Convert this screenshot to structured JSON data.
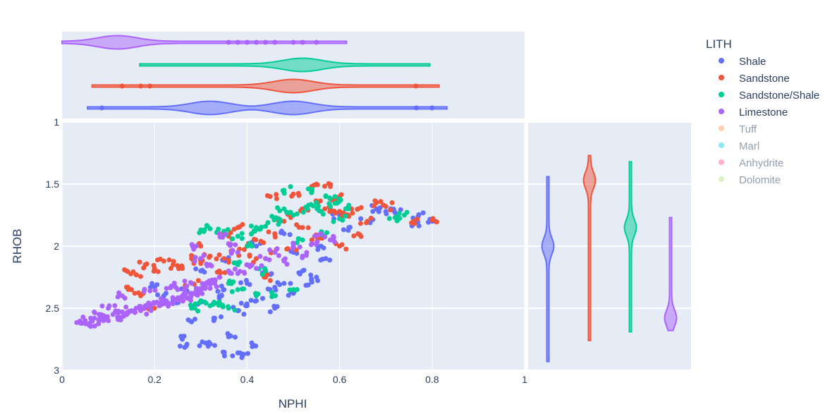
{
  "chart_data": {
    "type": "scatter",
    "xlabel": "NPHI",
    "ylabel": "RHOB",
    "xlim": [
      0,
      1
    ],
    "ylim": [
      3,
      1
    ],
    "y_reversed": true,
    "x_ticks": [
      "0",
      "0.2",
      "0.4",
      "0.6",
      "0.8",
      "1"
    ],
    "y_ticks": [
      "1",
      "1.5",
      "2",
      "2.5",
      "3"
    ],
    "x_tick_values": [
      0,
      0.2,
      0.4,
      0.6,
      0.8,
      1
    ],
    "y_tick_values": [
      1,
      1.5,
      2,
      2.5,
      3
    ],
    "grid": true,
    "marginal_x": "violin",
    "marginal_y": "violin",
    "legend": {
      "title": "LITH",
      "placement": "right",
      "items": [
        {
          "name": "Shale",
          "color": "#636efa",
          "visible": true
        },
        {
          "name": "Sandstone",
          "color": "#ef553b",
          "visible": true
        },
        {
          "name": "Sandstone/Shale",
          "color": "#00cc96",
          "visible": true
        },
        {
          "name": "Limestone",
          "color": "#ab63fa",
          "visible": true
        },
        {
          "name": "Tuff",
          "color": "#ffa15a",
          "visible": false
        },
        {
          "name": "Marl",
          "color": "#19d3f3",
          "visible": false
        },
        {
          "name": "Anhydrite",
          "color": "#ff6692",
          "visible": false
        },
        {
          "name": "Dolomite",
          "color": "#b6e880",
          "visible": false
        }
      ]
    },
    "series": [
      {
        "name": "Shale",
        "color": "#636efa",
        "points": [
          [
            0.27,
            2.36
          ],
          [
            0.3,
            2.45
          ],
          [
            0.34,
            2.42
          ],
          [
            0.38,
            2.52
          ],
          [
            0.42,
            2.44
          ],
          [
            0.46,
            2.5
          ],
          [
            0.5,
            2.38
          ],
          [
            0.54,
            2.29
          ],
          [
            0.3,
            2.2
          ],
          [
            0.4,
            2.3
          ],
          [
            0.33,
            2.58
          ],
          [
            0.28,
            2.61
          ],
          [
            0.44,
            2.2
          ],
          [
            0.5,
            2.05
          ],
          [
            0.56,
            2.0
          ],
          [
            0.6,
            1.75
          ],
          [
            0.62,
            1.85
          ],
          [
            0.66,
            1.8
          ],
          [
            0.68,
            1.7
          ],
          [
            0.7,
            1.72
          ],
          [
            0.36,
            2.12
          ],
          [
            0.42,
            2.0
          ],
          [
            0.26,
            2.75
          ],
          [
            0.27,
            2.79
          ],
          [
            0.31,
            2.78
          ],
          [
            0.33,
            2.8
          ],
          [
            0.35,
            2.86
          ],
          [
            0.38,
            2.86
          ],
          [
            0.39,
            2.87
          ],
          [
            0.41,
            2.78
          ],
          [
            0.36,
            2.73
          ],
          [
            0.24,
            2.44
          ],
          [
            0.22,
            2.4
          ],
          [
            0.2,
            2.33
          ],
          [
            0.48,
            2.3
          ],
          [
            0.52,
            2.2
          ],
          [
            0.45,
            2.35
          ],
          [
            0.4,
            2.48
          ],
          [
            0.35,
            2.35
          ],
          [
            0.72,
            1.73
          ],
          [
            0.77,
            1.76
          ],
          [
            0.8,
            1.8
          ],
          [
            0.76,
            1.81
          ],
          [
            0.55,
            2.25
          ],
          [
            0.48,
            1.9
          ],
          [
            0.57,
            2.1
          ]
        ],
        "x_violin": {
          "min": 0.055,
          "max": 0.832,
          "markers": [
            0.086,
            0.766,
            0.8
          ],
          "peaks": [
            0.32,
            0.5
          ]
        },
        "y_violin": {
          "min": 1.44,
          "max": 2.93,
          "peak": 2.0
        }
      },
      {
        "name": "Sandstone",
        "color": "#ef553b",
        "points": [
          [
            0.14,
            2.2
          ],
          [
            0.16,
            2.23
          ],
          [
            0.18,
            2.15
          ],
          [
            0.2,
            2.18
          ],
          [
            0.22,
            2.12
          ],
          [
            0.24,
            2.15
          ],
          [
            0.26,
            2.18
          ],
          [
            0.28,
            2.1
          ],
          [
            0.3,
            2.14
          ],
          [
            0.32,
            2.08
          ],
          [
            0.35,
            2.1
          ],
          [
            0.38,
            2.05
          ],
          [
            0.4,
            2.0
          ],
          [
            0.43,
            1.96
          ],
          [
            0.46,
            1.9
          ],
          [
            0.48,
            1.8
          ],
          [
            0.5,
            1.75
          ],
          [
            0.52,
            1.7
          ],
          [
            0.55,
            1.65
          ],
          [
            0.58,
            1.7
          ],
          [
            0.6,
            1.72
          ],
          [
            0.62,
            1.76
          ],
          [
            0.64,
            1.7
          ],
          [
            0.66,
            1.8
          ],
          [
            0.45,
            1.6
          ],
          [
            0.5,
            1.58
          ],
          [
            0.55,
            1.5
          ],
          [
            0.58,
            1.52
          ],
          [
            0.6,
            1.6
          ],
          [
            0.38,
            1.85
          ],
          [
            0.36,
            1.92
          ],
          [
            0.42,
            2.1
          ],
          [
            0.46,
            2.05
          ],
          [
            0.5,
            2.02
          ],
          [
            0.54,
            1.95
          ],
          [
            0.56,
            1.92
          ],
          [
            0.6,
            2.0
          ],
          [
            0.68,
            1.65
          ],
          [
            0.7,
            1.68
          ],
          [
            0.76,
            1.8
          ],
          [
            0.8,
            1.79
          ],
          [
            0.28,
            2.3
          ],
          [
            0.3,
            2.0
          ],
          [
            0.15,
            2.35
          ],
          [
            0.17,
            2.4
          ],
          [
            0.2,
            2.5
          ],
          [
            0.44,
            2.25
          ],
          [
            0.52,
            1.85
          ],
          [
            0.64,
            1.9
          ],
          [
            0.34,
            2.2
          ]
        ],
        "x_violin": {
          "min": 0.065,
          "max": 0.815,
          "markers": [
            0.13,
            0.17,
            0.19,
            0.765
          ],
          "peak": 0.5
        },
        "y_violin": {
          "min": 1.27,
          "max": 2.76,
          "peak": 1.47
        }
      },
      {
        "name": "Sandstone/Shale",
        "color": "#00cc96",
        "points": [
          [
            0.3,
            1.87
          ],
          [
            0.32,
            1.86
          ],
          [
            0.35,
            1.88
          ],
          [
            0.38,
            1.92
          ],
          [
            0.41,
            1.9
          ],
          [
            0.44,
            1.84
          ],
          [
            0.47,
            1.8
          ],
          [
            0.5,
            1.75
          ],
          [
            0.53,
            1.7
          ],
          [
            0.56,
            1.72
          ],
          [
            0.58,
            1.68
          ],
          [
            0.6,
            1.62
          ],
          [
            0.57,
            1.6
          ],
          [
            0.55,
            1.65
          ],
          [
            0.48,
            1.7
          ],
          [
            0.46,
            1.78
          ],
          [
            0.42,
            1.85
          ],
          [
            0.4,
            2.0
          ],
          [
            0.36,
            2.3
          ],
          [
            0.38,
            2.35
          ],
          [
            0.42,
            2.4
          ],
          [
            0.34,
            2.45
          ],
          [
            0.32,
            2.48
          ],
          [
            0.36,
            2.5
          ],
          [
            0.46,
            2.4
          ],
          [
            0.5,
            2.35
          ],
          [
            0.38,
            2.15
          ],
          [
            0.44,
            2.2
          ],
          [
            0.62,
            1.67
          ],
          [
            0.6,
            1.78
          ],
          [
            0.56,
            1.9
          ],
          [
            0.52,
            1.95
          ],
          [
            0.48,
            1.55
          ],
          [
            0.54,
            1.56
          ],
          [
            0.72,
            1.77
          ],
          [
            0.74,
            1.75
          ],
          [
            0.28,
            2.5
          ],
          [
            0.3,
            2.44
          ]
        ],
        "x_violin": {
          "min": 0.168,
          "max": 0.795,
          "peak": 0.52
        },
        "y_violin": {
          "min": 1.32,
          "max": 2.69,
          "peak": 1.85
        }
      },
      {
        "name": "Limestone",
        "color": "#ab63fa",
        "points": [
          [
            0.04,
            2.62
          ],
          [
            0.05,
            2.6
          ],
          [
            0.06,
            2.62
          ],
          [
            0.07,
            2.58
          ],
          [
            0.08,
            2.6
          ],
          [
            0.09,
            2.56
          ],
          [
            0.1,
            2.6
          ],
          [
            0.11,
            2.55
          ],
          [
            0.12,
            2.57
          ],
          [
            0.13,
            2.53
          ],
          [
            0.14,
            2.55
          ],
          [
            0.15,
            2.52
          ],
          [
            0.16,
            2.5
          ],
          [
            0.17,
            2.52
          ],
          [
            0.18,
            2.48
          ],
          [
            0.19,
            2.5
          ],
          [
            0.2,
            2.46
          ],
          [
            0.21,
            2.48
          ],
          [
            0.22,
            2.44
          ],
          [
            0.23,
            2.46
          ],
          [
            0.24,
            2.42
          ],
          [
            0.25,
            2.43
          ],
          [
            0.26,
            2.4
          ],
          [
            0.27,
            2.42
          ],
          [
            0.28,
            2.38
          ],
          [
            0.29,
            2.36
          ],
          [
            0.3,
            2.37
          ],
          [
            0.31,
            2.32
          ],
          [
            0.32,
            2.34
          ],
          [
            0.33,
            2.3
          ],
          [
            0.34,
            2.25
          ],
          [
            0.36,
            2.2
          ],
          [
            0.38,
            2.22
          ],
          [
            0.4,
            2.15
          ],
          [
            0.42,
            2.18
          ],
          [
            0.44,
            2.1
          ],
          [
            0.46,
            2.05
          ],
          [
            0.48,
            2.12
          ],
          [
            0.5,
            2.0
          ],
          [
            0.52,
            2.08
          ],
          [
            0.54,
            1.98
          ],
          [
            0.56,
            1.9
          ],
          [
            0.58,
            1.95
          ],
          [
            0.38,
            2.05
          ],
          [
            0.36,
            1.98
          ],
          [
            0.34,
            1.9
          ],
          [
            0.13,
            2.4
          ],
          [
            0.19,
            2.36
          ],
          [
            0.24,
            2.32
          ],
          [
            0.29,
            2.0
          ],
          [
            0.28,
            2.3
          ],
          [
            0.25,
            2.35
          ],
          [
            0.32,
            2.15
          ],
          [
            0.3,
            2.1
          ],
          [
            0.1,
            2.5
          ],
          [
            0.08,
            2.55
          ]
        ],
        "x_violin": {
          "min": 0.0,
          "max": 0.615,
          "markers": [
            0.36,
            0.38,
            0.4,
            0.42,
            0.44,
            0.46,
            0.5,
            0.52,
            0.55
          ],
          "peak": 0.12
        },
        "y_violin": {
          "min": 1.77,
          "max": 2.68,
          "peak": 2.58
        }
      }
    ]
  }
}
